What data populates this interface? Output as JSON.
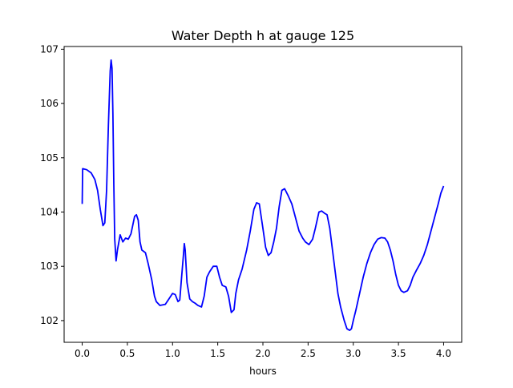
{
  "chart_data": {
    "type": "line",
    "title": "Water Depth h at gauge 125",
    "xlabel": "hours",
    "ylabel": "",
    "xlim": [
      -0.2,
      4.2
    ],
    "ylim": [
      101.6,
      107.05
    ],
    "grid": false,
    "x_ticks": [
      0.0,
      0.5,
      1.0,
      1.5,
      2.0,
      2.5,
      3.0,
      3.5,
      4.0
    ],
    "x_tick_labels": [
      "0.0",
      "0.5",
      "1.0",
      "1.5",
      "2.0",
      "2.5",
      "3.0",
      "3.5",
      "4.0"
    ],
    "y_ticks": [
      102,
      103,
      104,
      105,
      106,
      107
    ],
    "y_tick_labels": [
      "102",
      "103",
      "104",
      "105",
      "106",
      "107"
    ],
    "series": [
      {
        "color": "#0000ff",
        "points": [
          [
            0.0,
            104.15
          ],
          [
            0.005,
            104.8
          ],
          [
            0.05,
            104.78
          ],
          [
            0.1,
            104.72
          ],
          [
            0.14,
            104.6
          ],
          [
            0.17,
            104.4
          ],
          [
            0.2,
            104.05
          ],
          [
            0.23,
            103.75
          ],
          [
            0.25,
            103.8
          ],
          [
            0.27,
            104.4
          ],
          [
            0.29,
            105.6
          ],
          [
            0.31,
            106.6
          ],
          [
            0.32,
            106.8
          ],
          [
            0.33,
            106.65
          ],
          [
            0.34,
            105.8
          ],
          [
            0.35,
            104.5
          ],
          [
            0.36,
            103.5
          ],
          [
            0.375,
            103.1
          ],
          [
            0.39,
            103.3
          ],
          [
            0.42,
            103.58
          ],
          [
            0.45,
            103.45
          ],
          [
            0.48,
            103.52
          ],
          [
            0.51,
            103.5
          ],
          [
            0.54,
            103.6
          ],
          [
            0.58,
            103.92
          ],
          [
            0.6,
            103.95
          ],
          [
            0.62,
            103.85
          ],
          [
            0.64,
            103.45
          ],
          [
            0.66,
            103.3
          ],
          [
            0.7,
            103.25
          ],
          [
            0.73,
            103.05
          ],
          [
            0.77,
            102.75
          ],
          [
            0.8,
            102.45
          ],
          [
            0.82,
            102.35
          ],
          [
            0.86,
            102.28
          ],
          [
            0.92,
            102.3
          ],
          [
            0.96,
            102.4
          ],
          [
            1.0,
            102.5
          ],
          [
            1.03,
            102.48
          ],
          [
            1.06,
            102.35
          ],
          [
            1.08,
            102.38
          ],
          [
            1.1,
            102.8
          ],
          [
            1.12,
            103.2
          ],
          [
            1.13,
            103.42
          ],
          [
            1.14,
            103.3
          ],
          [
            1.16,
            102.7
          ],
          [
            1.19,
            102.4
          ],
          [
            1.22,
            102.35
          ],
          [
            1.25,
            102.32
          ],
          [
            1.28,
            102.28
          ],
          [
            1.32,
            102.25
          ],
          [
            1.35,
            102.45
          ],
          [
            1.38,
            102.8
          ],
          [
            1.41,
            102.9
          ],
          [
            1.45,
            103.0
          ],
          [
            1.49,
            103.0
          ],
          [
            1.52,
            102.8
          ],
          [
            1.55,
            102.65
          ],
          [
            1.59,
            102.62
          ],
          [
            1.62,
            102.45
          ],
          [
            1.65,
            102.15
          ],
          [
            1.68,
            102.2
          ],
          [
            1.7,
            102.5
          ],
          [
            1.73,
            102.75
          ],
          [
            1.77,
            102.95
          ],
          [
            1.82,
            103.3
          ],
          [
            1.86,
            103.65
          ],
          [
            1.9,
            104.05
          ],
          [
            1.93,
            104.17
          ],
          [
            1.96,
            104.15
          ],
          [
            2.0,
            103.7
          ],
          [
            2.03,
            103.35
          ],
          [
            2.06,
            103.2
          ],
          [
            2.09,
            103.25
          ],
          [
            2.12,
            103.45
          ],
          [
            2.15,
            103.7
          ],
          [
            2.18,
            104.1
          ],
          [
            2.21,
            104.4
          ],
          [
            2.24,
            104.43
          ],
          [
            2.28,
            104.3
          ],
          [
            2.32,
            104.15
          ],
          [
            2.36,
            103.9
          ],
          [
            2.4,
            103.65
          ],
          [
            2.44,
            103.52
          ],
          [
            2.47,
            103.45
          ],
          [
            2.51,
            103.4
          ],
          [
            2.55,
            103.5
          ],
          [
            2.58,
            103.7
          ],
          [
            2.6,
            103.85
          ],
          [
            2.62,
            104.0
          ],
          [
            2.65,
            104.02
          ],
          [
            2.68,
            103.98
          ],
          [
            2.71,
            103.95
          ],
          [
            2.74,
            103.7
          ],
          [
            2.77,
            103.3
          ],
          [
            2.8,
            102.9
          ],
          [
            2.83,
            102.5
          ],
          [
            2.86,
            102.25
          ],
          [
            2.9,
            102.0
          ],
          [
            2.93,
            101.85
          ],
          [
            2.96,
            101.82
          ],
          [
            2.98,
            101.85
          ],
          [
            3.0,
            102.0
          ],
          [
            3.03,
            102.2
          ],
          [
            3.07,
            102.5
          ],
          [
            3.11,
            102.8
          ],
          [
            3.15,
            103.05
          ],
          [
            3.19,
            103.25
          ],
          [
            3.23,
            103.4
          ],
          [
            3.27,
            103.5
          ],
          [
            3.31,
            103.53
          ],
          [
            3.35,
            103.52
          ],
          [
            3.38,
            103.45
          ],
          [
            3.41,
            103.3
          ],
          [
            3.44,
            103.1
          ],
          [
            3.47,
            102.85
          ],
          [
            3.5,
            102.65
          ],
          [
            3.53,
            102.55
          ],
          [
            3.56,
            102.52
          ],
          [
            3.6,
            102.55
          ],
          [
            3.63,
            102.65
          ],
          [
            3.66,
            102.8
          ],
          [
            3.7,
            102.93
          ],
          [
            3.74,
            103.05
          ],
          [
            3.78,
            103.2
          ],
          [
            3.82,
            103.4
          ],
          [
            3.86,
            103.65
          ],
          [
            3.9,
            103.9
          ],
          [
            3.94,
            104.15
          ],
          [
            3.97,
            104.35
          ],
          [
            4.0,
            104.48
          ]
        ]
      }
    ]
  }
}
